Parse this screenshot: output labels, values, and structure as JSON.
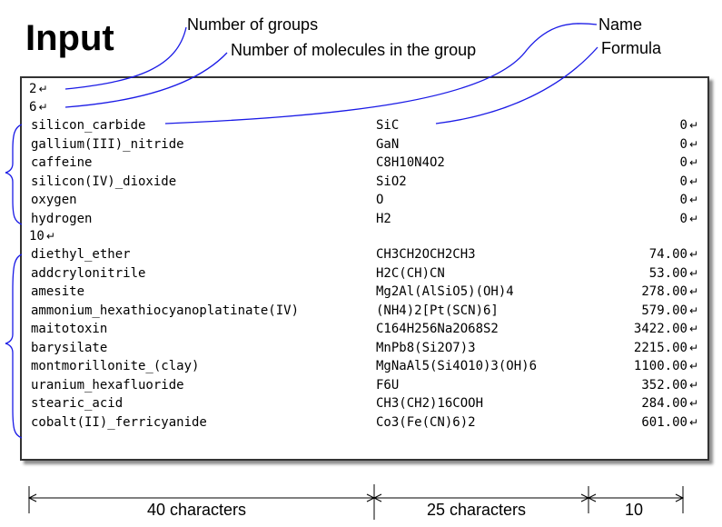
{
  "title": "Input",
  "callouts": {
    "groups": "Number of groups",
    "molecules": "Number of molecules in the group",
    "name": "Name",
    "formula": "Formula"
  },
  "return_glyph": "↵",
  "lines": {
    "groups_count": "2",
    "group1_count": "6",
    "group2_count": "10"
  },
  "group1": [
    {
      "name": "silicon_carbide",
      "formula": "SiC",
      "value": "0"
    },
    {
      "name": "gallium(III)_nitride",
      "formula": "GaN",
      "value": "0"
    },
    {
      "name": "caffeine",
      "formula": "C8H10N4O2",
      "value": "0"
    },
    {
      "name": "silicon(IV)_dioxide",
      "formula": "SiO2",
      "value": "0"
    },
    {
      "name": "oxygen",
      "formula": "O",
      "value": "0"
    },
    {
      "name": "hydrogen",
      "formula": "H2",
      "value": "0"
    }
  ],
  "group2": [
    {
      "name": "diethyl_ether",
      "formula": "CH3CH2OCH2CH3",
      "value": "74.00"
    },
    {
      "name": "addcrylonitrile",
      "formula": "H2C(CH)CN",
      "value": "53.00"
    },
    {
      "name": "amesite",
      "formula": "Mg2Al(AlSiO5)(OH)4",
      "value": "278.00"
    },
    {
      "name": "ammonium_hexathiocyanoplatinate(IV)",
      "formula": "(NH4)2[Pt(SCN)6]",
      "value": "579.00"
    },
    {
      "name": "maitotoxin",
      "formula": "C164H256Na2O68S2",
      "value": "3422.00"
    },
    {
      "name": "barysilate",
      "formula": "MnPb8(Si2O7)3",
      "value": "2215.00"
    },
    {
      "name": "montmorillonite_(clay)",
      "formula": "MgNaAl5(Si4O10)3(OH)6",
      "value": "1100.00"
    },
    {
      "name": "uranium_hexafluoride",
      "formula": "F6U",
      "value": "352.00"
    },
    {
      "name": "stearic_acid",
      "formula": "CH3(CH2)16COOH",
      "value": "284.00"
    },
    {
      "name": "cobalt(II)_ferricyanide",
      "formula": "Co3(Fe(CN)6)2",
      "value": "601.00"
    }
  ],
  "dimensions": {
    "name_width": "40 characters",
    "formula_width": "25 characters",
    "value_width": "10"
  }
}
